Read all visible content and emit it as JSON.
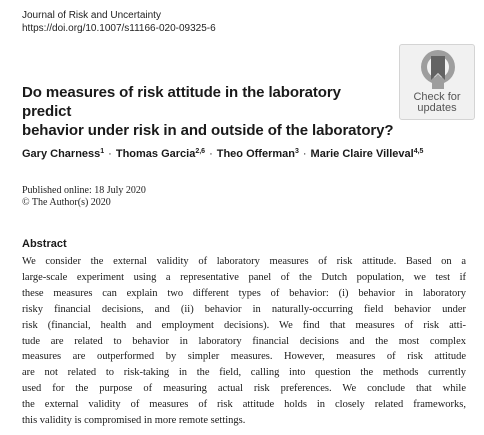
{
  "journal": {
    "name": "Journal of Risk and Uncertainty",
    "doi": "https://doi.org/10.1007/s11166-020-09325-6"
  },
  "badge": {
    "line1": "Check for",
    "line2": "updates",
    "icon": "crossmark-icon",
    "colors": {
      "dark": "#636363",
      "light": "#9e9e9e",
      "background": "#f1f1f1"
    }
  },
  "title": {
    "line1": "Do measures of risk attitude in the laboratory predict",
    "line2": "behavior under risk in and outside of the laboratory?"
  },
  "authors": [
    {
      "name": "Gary Charness",
      "affil": "1"
    },
    {
      "name": "Thomas Garcia",
      "affil": "2,6"
    },
    {
      "name": "Theo Offerman",
      "affil": "3"
    },
    {
      "name": "Marie Claire Villeval",
      "affil": "4,5"
    }
  ],
  "authors_separator": "·",
  "published": {
    "online": "Published online: 18 July 2020",
    "copyright": "© The Author(s) 2020"
  },
  "abstract": {
    "heading": "Abstract",
    "lines": [
      "We consider the external validity of laboratory measures of risk attitude. Based on a",
      "large-scale experiment using a representative panel of the Dutch population, we test if",
      "these measures can explain two different types of behavior: (i) behavior in laboratory",
      "risky financial decisions, and (ii) behavior in naturally-occurring field behavior under",
      "risk (financial, health and employment decisions). We find that measures of risk atti-",
      "tude are related to behavior in laboratory financial decisions and the most complex",
      "measures are outperformed by simpler measures. However, measures of risk attitude",
      "are not related to risk-taking in the field, calling into question the methods currently",
      "used for the purpose of measuring actual risk preferences. We conclude that while",
      "the external validity of measures of risk attitude holds in closely related frameworks,",
      "this validity is compromised in more remote settings."
    ]
  }
}
